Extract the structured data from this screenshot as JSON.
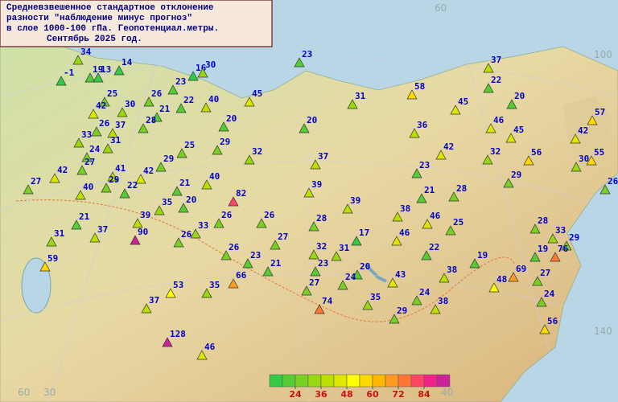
{
  "title_lines": [
    "Средневзвешенное стандартное отклонение",
    "разности \"наблюдение минус прогноз\"",
    "в слое 1000-100 гПа. Геопотенциал.метры.",
    "Сентябрь 2025 год."
  ],
  "stations": [
    34,
    19,
    13,
    14,
    -1,
    23,
    16,
    30,
    23,
    25,
    42,
    30,
    26,
    21,
    22,
    40,
    45,
    31,
    58,
    45,
    20,
    37,
    22,
    57,
    26,
    37,
    28,
    20,
    20,
    36,
    46,
    45,
    42,
    33,
    31,
    24,
    25,
    29,
    32,
    42,
    32,
    56,
    55,
    30,
    27,
    29,
    37,
    23,
    29,
    41,
    42,
    42,
    27,
    29,
    22,
    40,
    21,
    40,
    39,
    21,
    28,
    26,
    82,
    35,
    20,
    39,
    38,
    46,
    25,
    21,
    39,
    26,
    26,
    28,
    28,
    33,
    29,
    37,
    33,
    90,
    31,
    26,
    27,
    17,
    46,
    32,
    31,
    22,
    19,
    19,
    76,
    26,
    23,
    59,
    21,
    23,
    20,
    24,
    43,
    38,
    69,
    27,
    48,
    66,
    27,
    53,
    35,
    24,
    24,
    35,
    37,
    74,
    38,
    29,
    56,
    128,
    46
  ],
  "legend": {
    "ticks": [
      24,
      36,
      48,
      60,
      72,
      84
    ],
    "colors": [
      "#33cc44",
      "#55cc33",
      "#77d022",
      "#99d811",
      "#bbe000",
      "#dde800",
      "#ffff00",
      "#ffd800",
      "#ffb800",
      "#ff9922",
      "#ff7733",
      "#ff4466",
      "#ee2288",
      "#cc2299"
    ]
  },
  "grid_labels": [
    60,
    30,
    40,
    60,
    100,
    140
  ]
}
